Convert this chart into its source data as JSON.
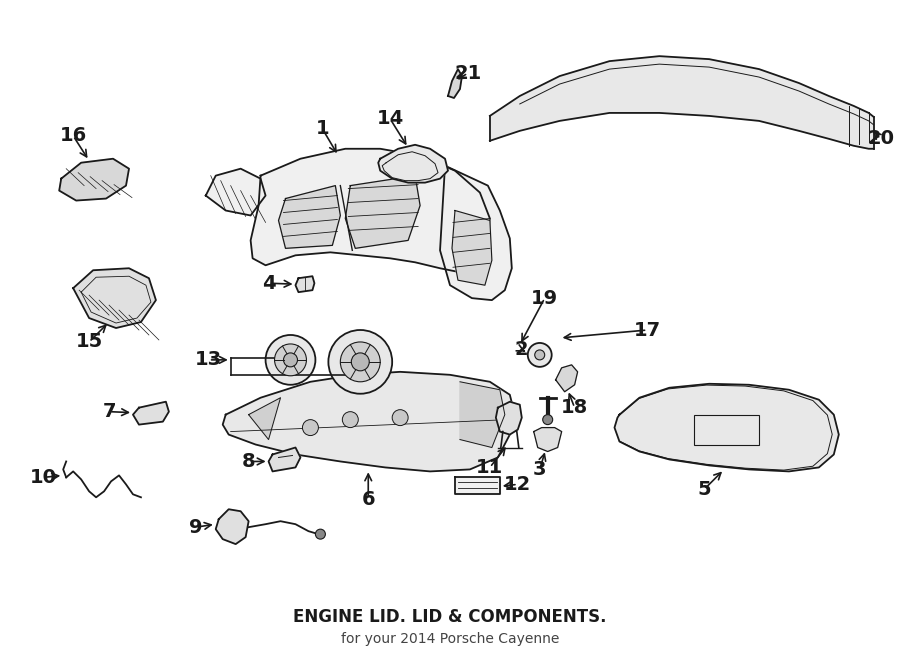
{
  "title": "ENGINE LID. LID & COMPONENTS.",
  "subtitle": "for your 2014 Porsche Cayenne",
  "bg_color": "#ffffff",
  "line_color": "#1a1a1a",
  "title_fontsize": 12,
  "subtitle_fontsize": 10,
  "label_fontsize": 14
}
